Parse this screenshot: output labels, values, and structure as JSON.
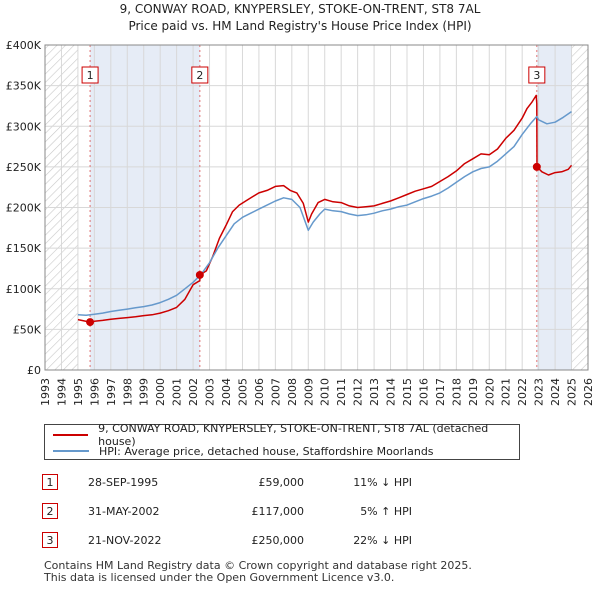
{
  "chart_data": {
    "type": "line",
    "title": "9, CONWAY ROAD, KNYPERSLEY, STOKE-ON-TRENT, ST8 7AL",
    "subtitle": "Price paid vs. HM Land Registry's House Price Index (HPI)",
    "xlim": [
      1993,
      2026
    ],
    "ylim": [
      0,
      400000
    ],
    "x_ticks": [
      "1993",
      "1994",
      "1995",
      "1996",
      "1997",
      "1998",
      "1999",
      "2000",
      "2001",
      "2002",
      "2003",
      "2004",
      "2005",
      "2006",
      "2007",
      "2008",
      "2009",
      "2010",
      "2011",
      "2012",
      "2013",
      "2014",
      "2015",
      "2016",
      "2017",
      "2018",
      "2019",
      "2020",
      "2021",
      "2022",
      "2023",
      "2024",
      "2025",
      "2026"
    ],
    "y_ticks": [
      {
        "value": 0,
        "label": "£0"
      },
      {
        "value": 50000,
        "label": "£50K"
      },
      {
        "value": 100000,
        "label": "£100K"
      },
      {
        "value": 150000,
        "label": "£150K"
      },
      {
        "value": 200000,
        "label": "£200K"
      },
      {
        "value": 250000,
        "label": "£250K"
      },
      {
        "value": 300000,
        "label": "£300K"
      },
      {
        "value": 350000,
        "label": "£350K"
      },
      {
        "value": 400000,
        "label": "£400K"
      }
    ],
    "hatched_ranges": [
      [
        1993,
        1995.0
      ],
      [
        2025.0,
        2026
      ]
    ],
    "shaded_ranges": [
      [
        1995.74,
        2002.41
      ],
      [
        2022.89,
        2025.0
      ]
    ],
    "series": [
      {
        "name": "9, CONWAY ROAD, KNYPERSLEY, STOKE-ON-TRENT, ST8 7AL (detached house)",
        "color": "#cc0000",
        "x": [
          1995.0,
          1995.74,
          1996.0,
          1996.5,
          1997.0,
          1997.5,
          1998.0,
          1998.5,
          1999.0,
          1999.5,
          2000.0,
          2000.5,
          2001.0,
          2001.5,
          2002.0,
          2002.41,
          2002.42,
          2002.8,
          2003.2,
          2003.6,
          2004.0,
          2004.4,
          2004.8,
          2005.2,
          2005.6,
          2006.0,
          2006.5,
          2007.0,
          2007.5,
          2007.9,
          2008.3,
          2008.7,
          2009.0,
          2009.2,
          2009.6,
          2010.0,
          2010.5,
          2011.0,
          2011.5,
          2012.0,
          2012.5,
          2013.0,
          2013.5,
          2014.0,
          2014.5,
          2015.0,
          2015.5,
          2016.0,
          2016.5,
          2017.0,
          2017.5,
          2018.0,
          2018.5,
          2019.0,
          2019.5,
          2020.0,
          2020.5,
          2021.0,
          2021.5,
          2022.0,
          2022.3,
          2022.6,
          2022.85,
          2022.89,
          2022.9,
          2023.2,
          2023.6,
          2024.0,
          2024.4,
          2024.8,
          2025.0
        ],
        "values": [
          62000,
          59000,
          60000,
          61000,
          62500,
          63500,
          64500,
          65500,
          67000,
          68000,
          70000,
          73000,
          77000,
          87000,
          105000,
          110000,
          117000,
          122000,
          140000,
          162000,
          178000,
          195000,
          203000,
          208000,
          213000,
          218000,
          221000,
          226000,
          227000,
          221000,
          218000,
          205000,
          182000,
          192000,
          206000,
          210000,
          207000,
          206000,
          202000,
          200000,
          201000,
          202000,
          205000,
          208000,
          212000,
          216000,
          220000,
          223000,
          226000,
          232000,
          238000,
          245000,
          254000,
          260000,
          266000,
          265000,
          272000,
          285000,
          295000,
          310000,
          322000,
          330000,
          338000,
          328000,
          250000,
          244000,
          240000,
          243000,
          244000,
          247000,
          252000
        ]
      },
      {
        "name": "HPI: Average price, detached house, Staffordshire Moorlands",
        "color": "#6699cc",
        "x": [
          1995.0,
          1995.5,
          1996.0,
          1996.5,
          1997.0,
          1997.5,
          1998.0,
          1998.5,
          1999.0,
          1999.5,
          2000.0,
          2000.5,
          2001.0,
          2001.5,
          2002.0,
          2002.5,
          2003.0,
          2003.5,
          2004.0,
          2004.5,
          2005.0,
          2005.5,
          2006.0,
          2006.5,
          2007.0,
          2007.5,
          2008.0,
          2008.5,
          2009.0,
          2009.3,
          2009.7,
          2010.0,
          2010.5,
          2011.0,
          2011.5,
          2012.0,
          2012.5,
          2013.0,
          2013.5,
          2014.0,
          2014.5,
          2015.0,
          2015.5,
          2016.0,
          2016.5,
          2017.0,
          2017.5,
          2018.0,
          2018.5,
          2019.0,
          2019.5,
          2020.0,
          2020.5,
          2021.0,
          2021.5,
          2022.0,
          2022.5,
          2022.89,
          2023.0,
          2023.5,
          2024.0,
          2024.5,
          2025.0
        ],
        "values": [
          68000,
          67500,
          68500,
          70000,
          72000,
          73500,
          75000,
          76500,
          78000,
          80000,
          83000,
          87000,
          92000,
          100000,
          108000,
          118000,
          132000,
          150000,
          165000,
          180000,
          188000,
          193000,
          198000,
          203000,
          208000,
          212000,
          210000,
          200000,
          172000,
          182000,
          192000,
          198000,
          196000,
          195000,
          192000,
          190000,
          191000,
          193000,
          196000,
          198000,
          201000,
          203000,
          207000,
          211000,
          214000,
          218000,
          224000,
          231000,
          238000,
          244000,
          248000,
          250000,
          257000,
          266000,
          275000,
          290000,
          303000,
          312000,
          308000,
          303000,
          305000,
          311000,
          318000
        ]
      }
    ],
    "sales": [
      {
        "label": "1",
        "x": 1995.74,
        "value": 59000
      },
      {
        "label": "2",
        "x": 2002.41,
        "value": 117000
      },
      {
        "label": "3",
        "x": 2022.89,
        "value": 250000
      }
    ]
  },
  "legend": {
    "property_label": "9, CONWAY ROAD, KNYPERSLEY, STOKE-ON-TRENT, ST8 7AL (detached house)",
    "hpi_label": "HPI: Average price, detached house, Staffordshire Moorlands"
  },
  "transactions": [
    {
      "num": "1",
      "date": "28-SEP-1995",
      "price": "£59,000",
      "hpi": "11% ↓ HPI"
    },
    {
      "num": "2",
      "date": "31-MAY-2002",
      "price": "£117,000",
      "hpi": "5% ↑ HPI"
    },
    {
      "num": "3",
      "date": "21-NOV-2022",
      "price": "£250,000",
      "hpi": "22% ↓ HPI"
    }
  ],
  "footer": {
    "line1": "Contains HM Land Registry data © Crown copyright and database right 2025.",
    "line2": "This data is licensed under the Open Government Licence v3.0."
  }
}
